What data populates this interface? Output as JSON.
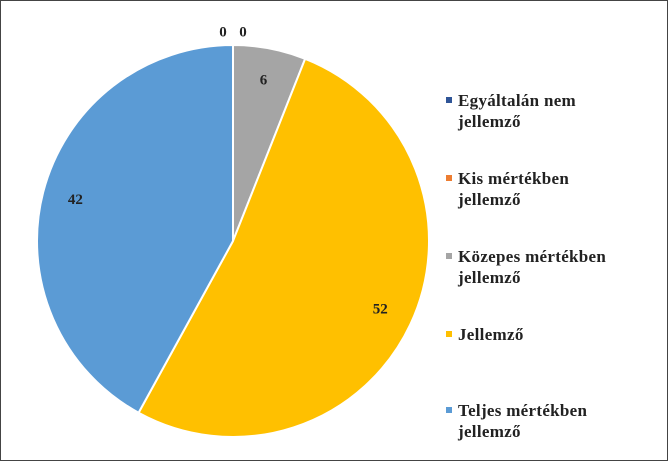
{
  "chart_data": {
    "type": "pie",
    "categories": [
      "Egyáltalán nem jellemző",
      "Kis mértékben jellemző",
      "Közepes mértékben jellemző",
      "Jellemző",
      "Teljes mértékben jellemző"
    ],
    "values": [
      0,
      0,
      6,
      52,
      42
    ],
    "colors": [
      "#2f5597",
      "#ed7d31",
      "#a5a5a5",
      "#ffc000",
      "#5b9bd5"
    ],
    "legend": "right"
  }
}
